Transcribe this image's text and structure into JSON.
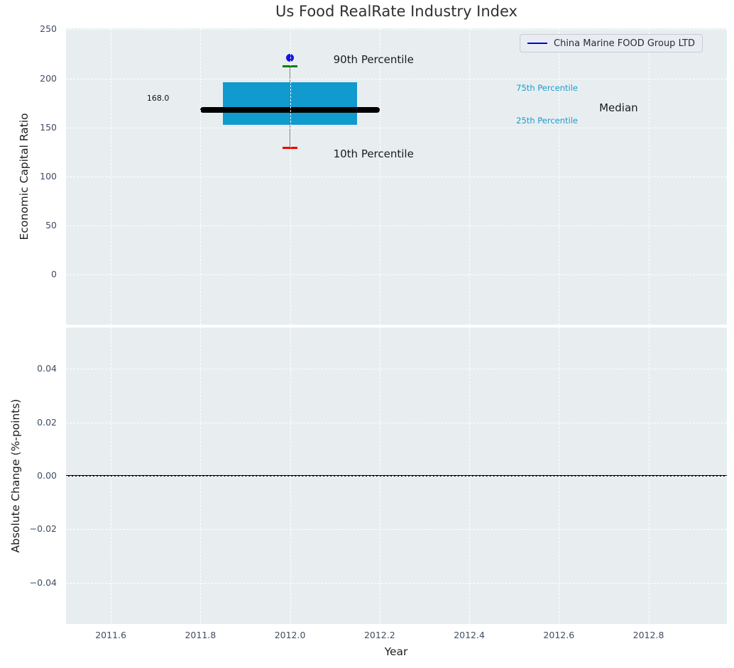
{
  "title": "Us Food RealRate Industry Index",
  "legend": {
    "label": "China Marine FOOD Group LTD"
  },
  "colors": {
    "box_fill": "#119acd",
    "median_line": "#000000",
    "p90_cap": "#008000",
    "p10_cap": "#ee0000",
    "whisker": "#808080",
    "company_dot": "#1414e6",
    "legend_line": "#0000e0",
    "percentile_label": "#1a9bcd",
    "plot_bg": "#e8eef0",
    "grid": "#ffffff",
    "tick_label": "#3f4d63",
    "zero_line": "#000000"
  },
  "chart_data": [
    {
      "type": "box",
      "title": "Us Food RealRate Industry Index",
      "ylabel": "Economic Capital Ratio",
      "xlim": [
        2011.5,
        2012.975
      ],
      "ylim": [
        -51,
        251
      ],
      "grid": true,
      "legend_position": "upper right",
      "xticks": [
        {
          "v": 2011.6,
          "label": "2011.6"
        },
        {
          "v": 2011.8,
          "label": "2011.8"
        },
        {
          "v": 2012.0,
          "label": "2012.0"
        },
        {
          "v": 2012.2,
          "label": "2012.2"
        },
        {
          "v": 2012.4,
          "label": "2012.4"
        },
        {
          "v": 2012.6,
          "label": "2012.6"
        },
        {
          "v": 2012.8,
          "label": "2012.8"
        }
      ],
      "yticks": [
        {
          "v": 250,
          "label": "250"
        },
        {
          "v": 200,
          "label": "200"
        },
        {
          "v": 150,
          "label": "150"
        },
        {
          "v": 100,
          "label": "100"
        },
        {
          "v": 50,
          "label": "50"
        },
        {
          "v": 0,
          "label": "0"
        }
      ],
      "box": {
        "x": 2012.0,
        "box_width": 0.3,
        "median_width": 0.4,
        "p10": 129,
        "p25": 153,
        "median": 168,
        "p75": 196,
        "p90": 212
      },
      "series": [
        {
          "name": "China Marine FOOD Group LTD",
          "x": [
            2012.0
          ],
          "y": [
            221
          ]
        }
      ],
      "labels": {
        "p90": "90th Percentile",
        "p10": "10th Percentile",
        "p75": "75th Percentile",
        "p25": "25th Percentile",
        "median": "Median",
        "median_value": "168.0"
      }
    },
    {
      "type": "line",
      "ylabel": "Absolute Change (%-points)",
      "xlabel": "Year",
      "xlim": [
        2011.5,
        2012.975
      ],
      "ylim": [
        -0.0555,
        0.0555
      ],
      "grid": true,
      "xticks": [
        {
          "v": 2011.6,
          "label": "2011.6"
        },
        {
          "v": 2011.8,
          "label": "2011.8"
        },
        {
          "v": 2012.0,
          "label": "2012.0"
        },
        {
          "v": 2012.2,
          "label": "2012.2"
        },
        {
          "v": 2012.4,
          "label": "2012.4"
        },
        {
          "v": 2012.6,
          "label": "2012.6"
        },
        {
          "v": 2012.8,
          "label": "2012.8"
        }
      ],
      "yticks": [
        {
          "v": 0.04,
          "label": "0.04"
        },
        {
          "v": 0.02,
          "label": "0.02"
        },
        {
          "v": 0.0,
          "label": "0.00"
        },
        {
          "v": -0.02,
          "label": "−0.02"
        },
        {
          "v": -0.04,
          "label": "−0.04"
        }
      ],
      "zero_line": 0.0,
      "series": []
    }
  ]
}
